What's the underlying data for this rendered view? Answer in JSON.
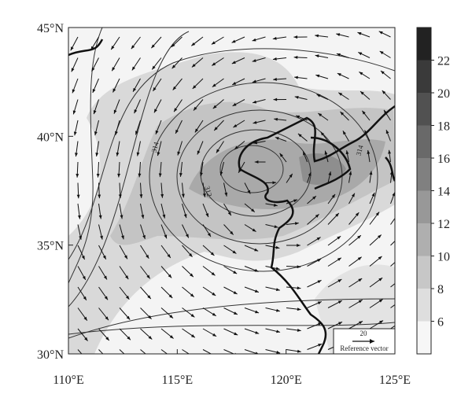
{
  "map": {
    "xlim": [
      110,
      125
    ],
    "xticks": [
      {
        "value": 110,
        "label": "110°E"
      },
      {
        "value": 115,
        "label": "115°E"
      },
      {
        "value": 120,
        "label": "120°E"
      },
      {
        "value": 125,
        "label": "125°E"
      }
    ],
    "ylim": [
      30,
      45
    ],
    "yticks": [
      {
        "value": 30,
        "label": "30°N"
      },
      {
        "value": 35,
        "label": "35°N"
      },
      {
        "value": 40,
        "label": "40°N"
      },
      {
        "value": 45,
        "label": "45°N"
      }
    ],
    "colorbar": {
      "lim": [
        4,
        24
      ],
      "ticks": [
        6,
        8,
        10,
        12,
        14,
        16,
        18,
        20,
        22
      ]
    },
    "contour_labels": [
      314,
      312,
      314
    ],
    "reference_vector": {
      "value": 20,
      "label": "Reference vector"
    }
  }
}
